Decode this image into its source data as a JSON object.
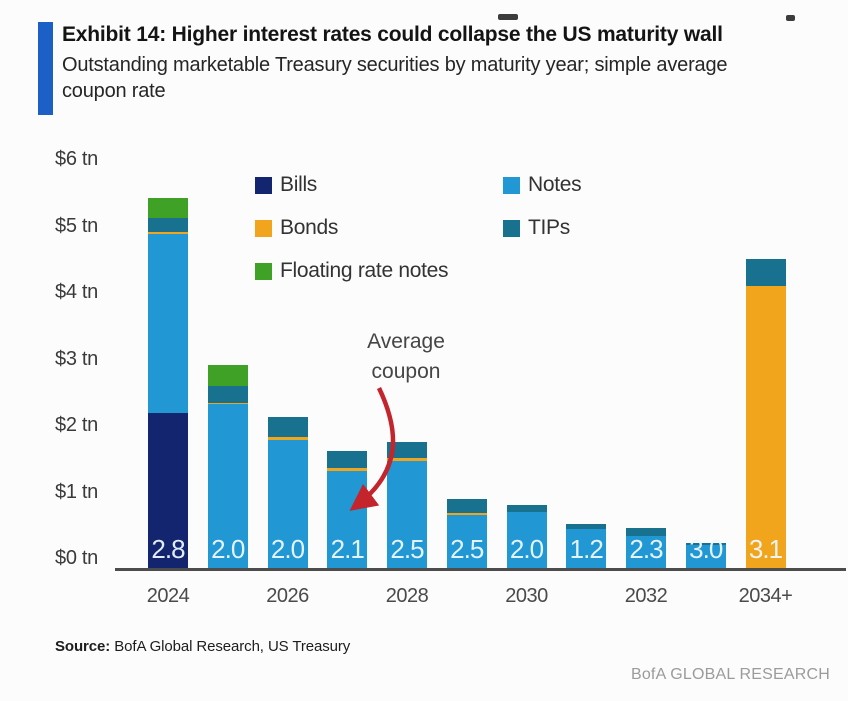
{
  "header": {
    "title": "Exhibit 14: Higher interest rates could collapse the US maturity wall",
    "subtitle": "Outstanding marketable Treasury securities by maturity year; simple average coupon rate"
  },
  "chart_data": {
    "type": "bar",
    "stacked": true,
    "title": "Outstanding marketable Treasury securities by maturity year",
    "ylabel": "$ tn",
    "ylim": [
      0,
      6
    ],
    "grid": false,
    "legend_position": "upper-center",
    "categories": [
      "2024",
      "2025",
      "2026",
      "2027",
      "2028",
      "2029",
      "2030",
      "2031",
      "2032",
      "2033",
      "2034+"
    ],
    "series": [
      {
        "name": "Bills",
        "color": "#13256e",
        "values": [
          2.3,
          0,
          0,
          0,
          0,
          0,
          0,
          0,
          0,
          0,
          0
        ]
      },
      {
        "name": "Notes",
        "color": "#2197d4",
        "values": [
          2.62,
          2.43,
          1.9,
          1.45,
          1.6,
          0.8,
          0.85,
          0.6,
          0.5,
          0.37,
          0
        ]
      },
      {
        "name": "Bonds",
        "color": "#f0a51c",
        "values": [
          0.03,
          0.02,
          0.04,
          0.04,
          0.04,
          0.04,
          0,
          0,
          0,
          0,
          4.15
        ]
      },
      {
        "name": "TIPs",
        "color": "#18718e",
        "values": [
          0.2,
          0.25,
          0.3,
          0.25,
          0.23,
          0.2,
          0.1,
          0.07,
          0.11,
          0.03,
          0.4
        ]
      },
      {
        "name": "Floating rate notes",
        "color": "#3fa226",
        "values": [
          0.3,
          0.3,
          0,
          0,
          0,
          0,
          0,
          0,
          0,
          0,
          0
        ]
      }
    ],
    "bar_labels": [
      "2.8",
      "2.0",
      "2.0",
      "2.1",
      "2.5",
      "2.5",
      "2.0",
      "1.2",
      "2.3",
      "3.0",
      "3.1"
    ],
    "bar_labels_meaning": "simple average coupon rate (%)",
    "y_ticks": [
      {
        "label": "$6 tn",
        "value": 6
      },
      {
        "label": "$5 tn",
        "value": 5
      },
      {
        "label": "$4 tn",
        "value": 4
      },
      {
        "label": "$3 tn",
        "value": 3
      },
      {
        "label": "$2 tn",
        "value": 2
      },
      {
        "label": "$1 tn",
        "value": 1
      },
      {
        "label": "$0 tn",
        "value": 0
      }
    ],
    "x_ticks": [
      {
        "label": "2024",
        "category_index": 0
      },
      {
        "label": "2026",
        "category_index": 2
      },
      {
        "label": "2028",
        "category_index": 4
      },
      {
        "label": "2030",
        "category_index": 6
      },
      {
        "label": "2032",
        "category_index": 8
      },
      {
        "label": "2034+",
        "category_index": 10
      }
    ],
    "annotation": {
      "text": "Average coupon",
      "arrow_color": "#c4242b",
      "points_to": "2027"
    }
  },
  "footer": {
    "source_label": "Source:",
    "source_text": " BofA Global Research, US Treasury",
    "brand": "BofA GLOBAL RESEARCH"
  }
}
